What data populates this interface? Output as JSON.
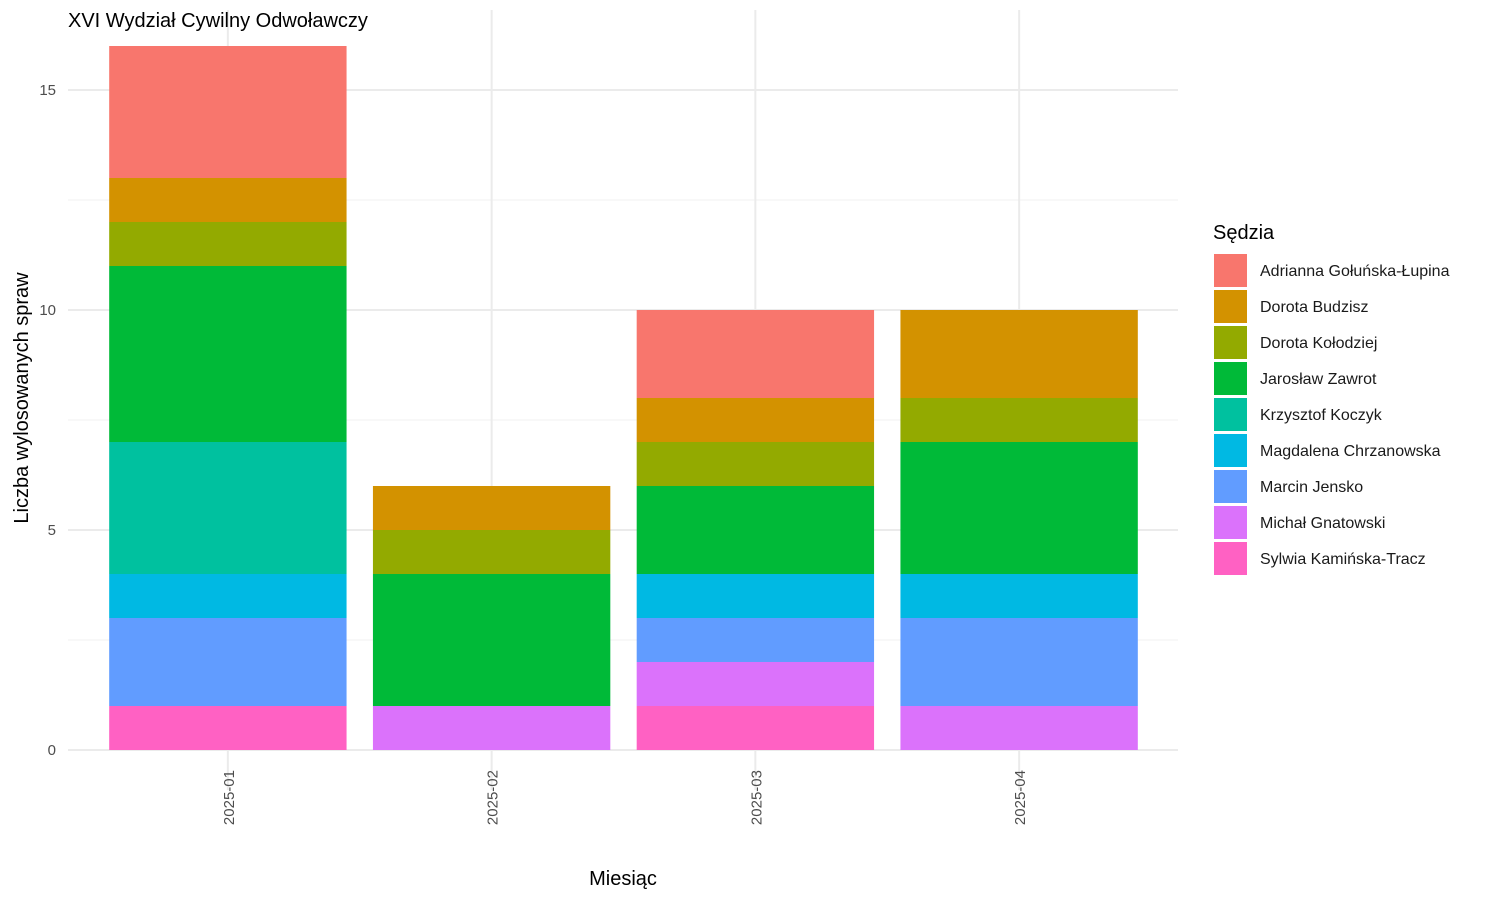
{
  "chart_data": {
    "type": "bar",
    "stacked": true,
    "title": "XVI Wydział Cywilny Odwoławczy",
    "xlabel": "Miesiąc",
    "ylabel": "Liczba wylosowanych spraw",
    "ylim": [
      0,
      16
    ],
    "yticks": [
      0,
      5,
      10,
      15
    ],
    "grid": true,
    "legend_position": "right",
    "legend_title": "Sędzia",
    "categories": [
      "2025-01",
      "2025-02",
      "2025-03",
      "2025-04"
    ],
    "series": [
      {
        "name": "Adrianna Gołuńska-Łupina",
        "color": "#F8766D",
        "values": [
          3,
          0,
          2,
          0
        ]
      },
      {
        "name": "Dorota Budzisz",
        "color": "#D39200",
        "values": [
          1,
          1,
          1,
          2
        ]
      },
      {
        "name": "Dorota Kołodziej",
        "color": "#93AA00",
        "values": [
          1,
          1,
          1,
          1
        ]
      },
      {
        "name": "Jarosław Zawrot",
        "color": "#00BA38",
        "values": [
          4,
          3,
          2,
          3
        ]
      },
      {
        "name": "Krzysztof Koczyk",
        "color": "#00C19F",
        "values": [
          3,
          0,
          0,
          0
        ]
      },
      {
        "name": "Magdalena Chrzanowska",
        "color": "#00B9E3",
        "values": [
          1,
          0,
          1,
          1
        ]
      },
      {
        "name": "Marcin Jensko",
        "color": "#619CFF",
        "values": [
          2,
          0,
          1,
          2
        ]
      },
      {
        "name": "Michał Gnatowski",
        "color": "#DB72FB",
        "values": [
          0,
          1,
          1,
          1
        ]
      },
      {
        "name": "Sylwia Kamińska-Tracz",
        "color": "#FF61C3",
        "values": [
          1,
          0,
          1,
          0
        ]
      }
    ]
  }
}
